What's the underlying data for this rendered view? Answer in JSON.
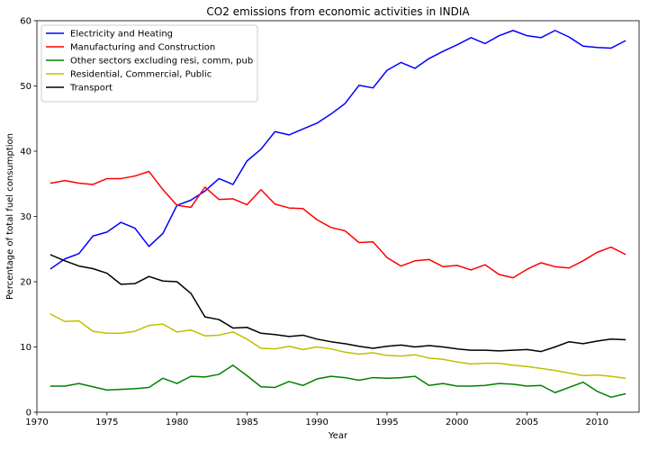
{
  "chart_data": {
    "type": "line",
    "title": "CO2 emissions from economic activities in INDIA",
    "xlabel": "Year",
    "ylabel": "Percentage of total fuel consumption",
    "xlim": [
      1970,
      2013
    ],
    "ylim": [
      0,
      60
    ],
    "xticks": [
      1970,
      1975,
      1980,
      1985,
      1990,
      1995,
      2000,
      2005,
      2010
    ],
    "yticks": [
      0,
      10,
      20,
      30,
      40,
      50,
      60
    ],
    "grid": false,
    "legend_position": "top-left",
    "x": [
      1971,
      1972,
      1973,
      1974,
      1975,
      1976,
      1977,
      1978,
      1979,
      1980,
      1981,
      1982,
      1983,
      1984,
      1985,
      1986,
      1987,
      1988,
      1989,
      1990,
      1991,
      1992,
      1993,
      1994,
      1995,
      1996,
      1997,
      1998,
      1999,
      2000,
      2001,
      2002,
      2003,
      2004,
      2005,
      2006,
      2007,
      2008,
      2009,
      2010,
      2011,
      2012
    ],
    "series": [
      {
        "name": "Electricity and Heating",
        "color": "#0000ff",
        "values": [
          22.0,
          23.5,
          24.3,
          27.0,
          27.6,
          29.1,
          28.2,
          25.4,
          27.4,
          31.7,
          32.5,
          33.9,
          35.8,
          34.9,
          38.5,
          40.3,
          43.0,
          42.5,
          43.4,
          44.3,
          45.7,
          47.3,
          50.1,
          49.7,
          52.4,
          53.6,
          52.7,
          54.2,
          55.3,
          56.3,
          57.4,
          56.5,
          57.7,
          58.5,
          57.7,
          57.4,
          58.5,
          57.5,
          56.1,
          55.9,
          55.8,
          56.9
        ]
      },
      {
        "name": "Manufacturing and Construction",
        "color": "#ff0000",
        "values": [
          35.1,
          35.5,
          35.1,
          34.9,
          35.8,
          35.8,
          36.2,
          36.9,
          34.1,
          31.7,
          31.4,
          34.5,
          32.6,
          32.7,
          31.8,
          34.1,
          31.9,
          31.3,
          31.2,
          29.5,
          28.3,
          27.8,
          26.0,
          26.1,
          23.7,
          22.4,
          23.2,
          23.4,
          22.3,
          22.5,
          21.8,
          22.6,
          21.1,
          20.6,
          21.9,
          22.9,
          22.3,
          22.1,
          23.2,
          24.5,
          25.3,
          24.2
        ]
      },
      {
        "name": "Other sectors excluding resi, comm, pub",
        "color": "#008000",
        "values": [
          4.0,
          4.0,
          4.4,
          3.9,
          3.4,
          3.5,
          3.6,
          3.8,
          5.2,
          4.4,
          5.5,
          5.4,
          5.8,
          7.2,
          5.6,
          3.9,
          3.8,
          4.7,
          4.1,
          5.1,
          5.5,
          5.3,
          4.9,
          5.3,
          5.2,
          5.3,
          5.5,
          4.1,
          4.4,
          4.0,
          4.0,
          4.1,
          4.4,
          4.3,
          4.0,
          4.1,
          3.0,
          3.8,
          4.6,
          3.2,
          2.3,
          2.8
        ]
      },
      {
        "name": "Residential, Commercial, Public",
        "color": "#bfbf00",
        "values": [
          15.0,
          13.9,
          14.0,
          12.4,
          12.1,
          12.1,
          12.4,
          13.3,
          13.5,
          12.3,
          12.6,
          11.7,
          11.8,
          12.3,
          11.2,
          9.8,
          9.7,
          10.1,
          9.6,
          10.0,
          9.7,
          9.2,
          8.9,
          9.1,
          8.7,
          8.6,
          8.8,
          8.3,
          8.1,
          7.7,
          7.4,
          7.5,
          7.5,
          7.2,
          7.0,
          6.7,
          6.4,
          6.0,
          5.6,
          5.7,
          5.5,
          5.2
        ]
      },
      {
        "name": "Transport",
        "color": "#000000",
        "values": [
          24.1,
          23.2,
          22.4,
          22.0,
          21.3,
          19.6,
          19.7,
          20.8,
          20.1,
          20.0,
          18.2,
          14.6,
          14.2,
          12.9,
          13.0,
          12.1,
          11.9,
          11.6,
          11.8,
          11.2,
          10.8,
          10.5,
          10.1,
          9.8,
          10.1,
          10.3,
          10.0,
          10.2,
          10.0,
          9.7,
          9.5,
          9.5,
          9.4,
          9.5,
          9.6,
          9.3,
          10.0,
          10.8,
          10.5,
          10.9,
          11.2,
          11.1
        ]
      }
    ]
  }
}
